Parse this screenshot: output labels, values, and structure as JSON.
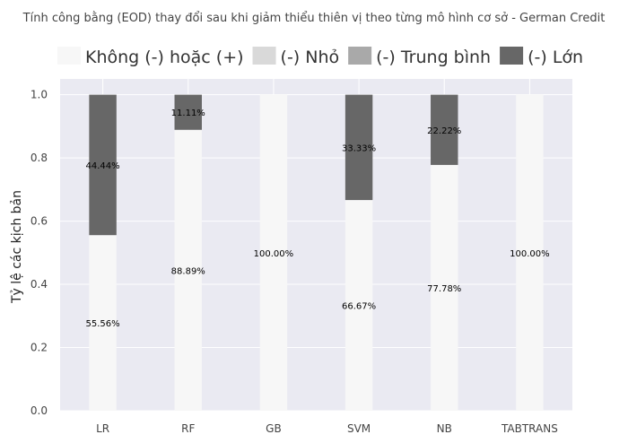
{
  "chart_data": {
    "type": "bar",
    "stacked": true,
    "title": "Tính công bằng (EOD) thay đổi sau khi giảm thiểu thiên vị theo từng mô hình cơ sở - German Credit",
    "xlabel": "",
    "ylabel": "Tỷ lệ các kịch bản",
    "ylim": [
      0,
      1.05
    ],
    "yticks": [
      "0.0",
      "0.2",
      "0.4",
      "0.6",
      "0.8",
      "1.0"
    ],
    "grid": true,
    "legend_position": "top",
    "categories": [
      "LR",
      "RF",
      "GB",
      "SVM",
      "NB",
      "TABTRANS"
    ],
    "series": [
      {
        "name": "Không (-) hoặc (+)",
        "color": "#f7f7f7",
        "values": [
          0.5556,
          0.8889,
          1.0,
          0.6667,
          0.7778,
          1.0
        ],
        "labels": [
          "55.56%",
          "88.89%",
          "100.00%",
          "66.67%",
          "77.78%",
          "100.00%"
        ]
      },
      {
        "name": "(-) Nhỏ",
        "color": "#d9d9d9",
        "values": [
          0,
          0,
          0,
          0,
          0,
          0
        ],
        "labels": [
          "",
          "",
          "",
          "",
          "",
          ""
        ]
      },
      {
        "name": "(-) Trung bình",
        "color": "#a9a9a9",
        "values": [
          0,
          0,
          0,
          0,
          0,
          0
        ],
        "labels": [
          "",
          "",
          "",
          "",
          "",
          ""
        ]
      },
      {
        "name": "(-) Lớn",
        "color": "#676767",
        "values": [
          0.4444,
          0.1111,
          0,
          0.3333,
          0.2222,
          0
        ],
        "labels": [
          "44.44%",
          "11.11%",
          "",
          "33.33%",
          "22.22%",
          ""
        ]
      }
    ],
    "colors": {
      "plot_background": "#eaeaf2",
      "grid": "#ffffff"
    }
  }
}
